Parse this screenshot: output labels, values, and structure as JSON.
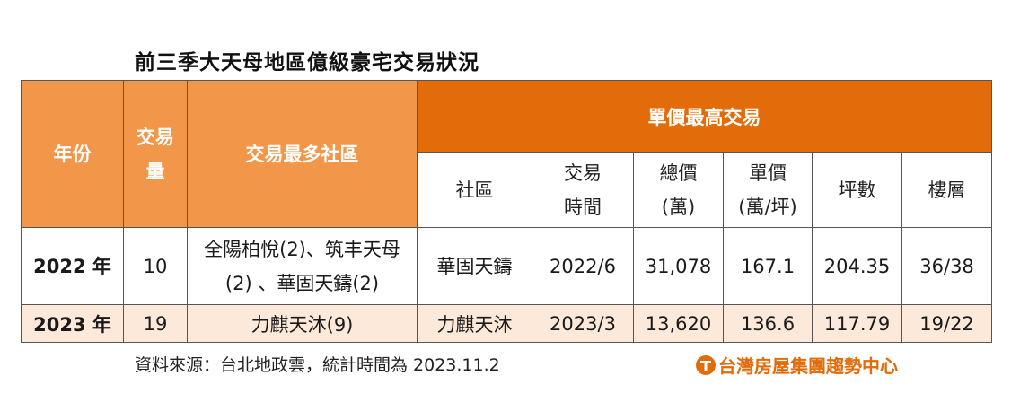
{
  "title": "前三季大天母地區億級豪宅交易狀況",
  "header": {
    "year": "年份",
    "count_line1": "交易",
    "count_line2": "量",
    "top_community": "交易最多社區",
    "group": "單價最高交易",
    "sub": {
      "community": "社區",
      "date_line1": "交易",
      "date_line2": "時間",
      "total_line1": "總價",
      "total_line2": "(萬)",
      "unit_line1": "單價",
      "unit_line2": "(萬/坪)",
      "area": "坪數",
      "floor": "樓層"
    }
  },
  "rows": [
    {
      "year": "2022 年",
      "count": "10",
      "top_line1": "全陽柏悅(2)、筑丰天母",
      "top_line2": "(2) 、華固天鑄(2)",
      "community": "華固天鑄",
      "date": "2022/6",
      "total": "31,078",
      "unit": "167.1",
      "area": "204.35",
      "floor": "36/38"
    },
    {
      "year": "2023 年",
      "count": "19",
      "top_line1": "力麒天沐(9)",
      "community": "力麒天沐",
      "date": "2023/3",
      "total": "13,620",
      "unit": "136.6",
      "area": "117.79",
      "floor": "19/22"
    }
  ],
  "source": "資料來源：台北地政雲，統計時間為 2023.11.2",
  "brand": {
    "name": "台灣房屋集團趨勢中心",
    "logo_icon": "tw-housing-logo-icon",
    "color": "#e36c0a"
  },
  "colors": {
    "header_light": "#f2964a",
    "header_dark": "#e36c0a",
    "row_highlight": "#fde9d9"
  }
}
